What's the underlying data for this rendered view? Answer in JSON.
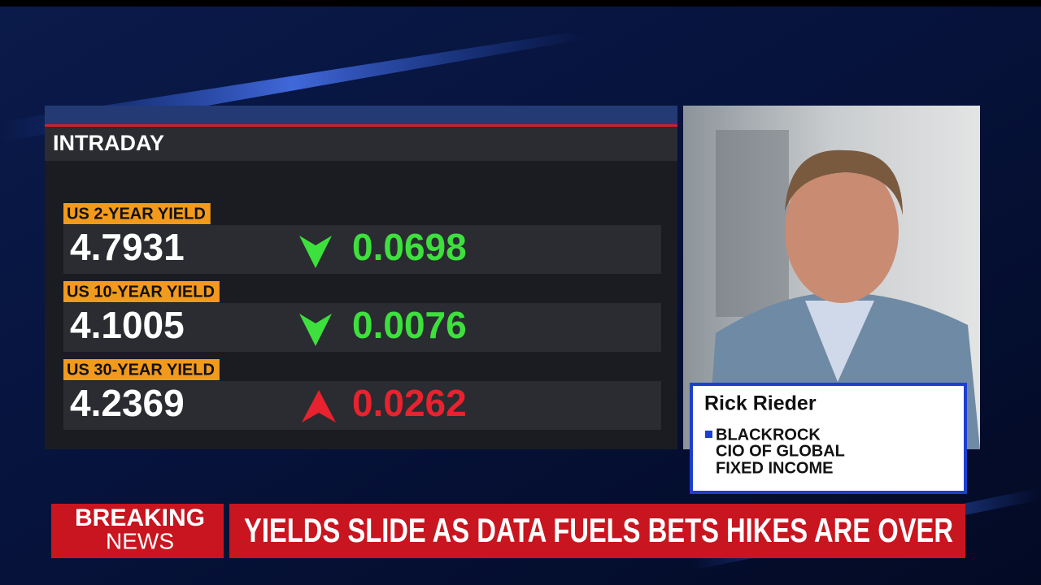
{
  "panel": {
    "title": "INTRADAY",
    "rows": [
      {
        "label": "US 2-YEAR YIELD",
        "value": "4.7931",
        "direction": "down",
        "change": "0.0698"
      },
      {
        "label": "US 10-YEAR YIELD",
        "value": "4.1005",
        "direction": "down",
        "change": "0.0076"
      },
      {
        "label": "US 30-YEAR YIELD",
        "value": "4.2369",
        "direction": "up",
        "change": "0.0262"
      }
    ]
  },
  "guest": {
    "name": "Rick Rieder",
    "lines": [
      "BLACKROCK",
      "CIO OF GLOBAL",
      "FIXED INCOME"
    ]
  },
  "ticker": {
    "tag_lines": [
      "BREAKING",
      "NEWS"
    ],
    "headline": "YIELDS SLIDE AS DATA FUELS BETS HIKES ARE OVER"
  }
}
